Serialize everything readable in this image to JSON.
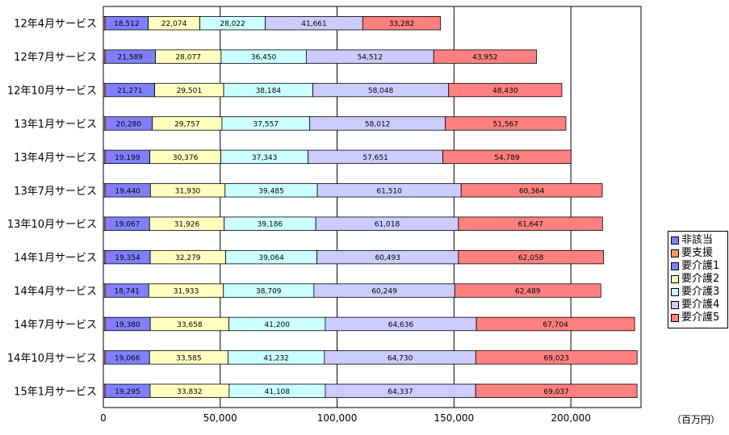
{
  "chart_data": {
    "type": "bar",
    "orientation": "horizontal",
    "stacked": true,
    "categories": [
      "12年4月サービス",
      "12年7月サービス",
      "12年10月サービス",
      "13年1月サービス",
      "13年4月サービス",
      "13年7月サービス",
      "13年10月サービス",
      "14年1月サービス",
      "14年4月サービス",
      "14年7月サービス",
      "14年10月サービス",
      "15年1月サービス"
    ],
    "series": [
      {
        "name": "非該当",
        "color": "#8080ff",
        "values": [
          0,
          0,
          0,
          0,
          0,
          0,
          0,
          0,
          0,
          0,
          0,
          0
        ]
      },
      {
        "name": "要支援",
        "color": "#ff9966",
        "values": [
          700,
          700,
          700,
          700,
          700,
          700,
          700,
          700,
          700,
          700,
          700,
          700
        ]
      },
      {
        "name": "要介護1",
        "color": "#8080ff",
        "values": [
          18512,
          21589,
          21271,
          20280,
          19199,
          19440,
          19067,
          19354,
          18741,
          19380,
          19066,
          19295
        ]
      },
      {
        "name": "要介護2",
        "color": "#ffffc0",
        "values": [
          22074,
          28077,
          29501,
          29757,
          30376,
          31930,
          31926,
          32279,
          31933,
          33658,
          33585,
          33832
        ]
      },
      {
        "name": "要介護3",
        "color": "#ccffff",
        "values": [
          28022,
          36450,
          38184,
          37557,
          37343,
          39485,
          39186,
          39064,
          38709,
          41200,
          41232,
          41108
        ]
      },
      {
        "name": "要介護4",
        "color": "#ccccff",
        "values": [
          41661,
          54512,
          58048,
          58012,
          57651,
          61510,
          61018,
          60493,
          60249,
          64636,
          64730,
          64337
        ]
      },
      {
        "name": "要介護5",
        "color": "#ff8080",
        "values": [
          33282,
          43952,
          48430,
          51567,
          54789,
          60364,
          61647,
          62058,
          62489,
          67704,
          69023,
          69037
        ]
      }
    ],
    "value_labels": [
      [
        "18,512",
        "22,074",
        "28,022",
        "41,661",
        "33,282"
      ],
      [
        "21,589",
        "28,077",
        "36,450",
        "54,512",
        "43,952"
      ],
      [
        "21,271",
        "29,501",
        "38,184",
        "58,048",
        "48,430"
      ],
      [
        "20,280",
        "29,757",
        "37,557",
        "58,012",
        "51,567"
      ],
      [
        "19,199",
        "30,376",
        "37,343",
        "57,651",
        "54,789"
      ],
      [
        "19,440",
        "31,930",
        "39,485",
        "61,510",
        "60,364"
      ],
      [
        "19,067",
        "31,926",
        "39,186",
        "61,018",
        "61,647"
      ],
      [
        "19,354",
        "32,279",
        "39,064",
        "60,493",
        "62,058"
      ],
      [
        "18,741",
        "31,933",
        "38,709",
        "60,249",
        "62,489"
      ],
      [
        "19,380",
        "33,658",
        "41,200",
        "64,636",
        "67,704"
      ],
      [
        "19,066",
        "33,585",
        "41,232",
        "64,730",
        "69,023"
      ],
      [
        "19,295",
        "33,832",
        "41,108",
        "64,337",
        "69,037"
      ]
    ],
    "xlim": [
      0,
      230000
    ],
    "xticks": [
      0,
      50000,
      100000,
      150000,
      200000
    ],
    "xtick_labels": [
      "0",
      "50,000",
      "100,000",
      "150,000",
      "200,000"
    ],
    "unit_label": "（百万円）",
    "grid": true,
    "legend_position": "right"
  }
}
